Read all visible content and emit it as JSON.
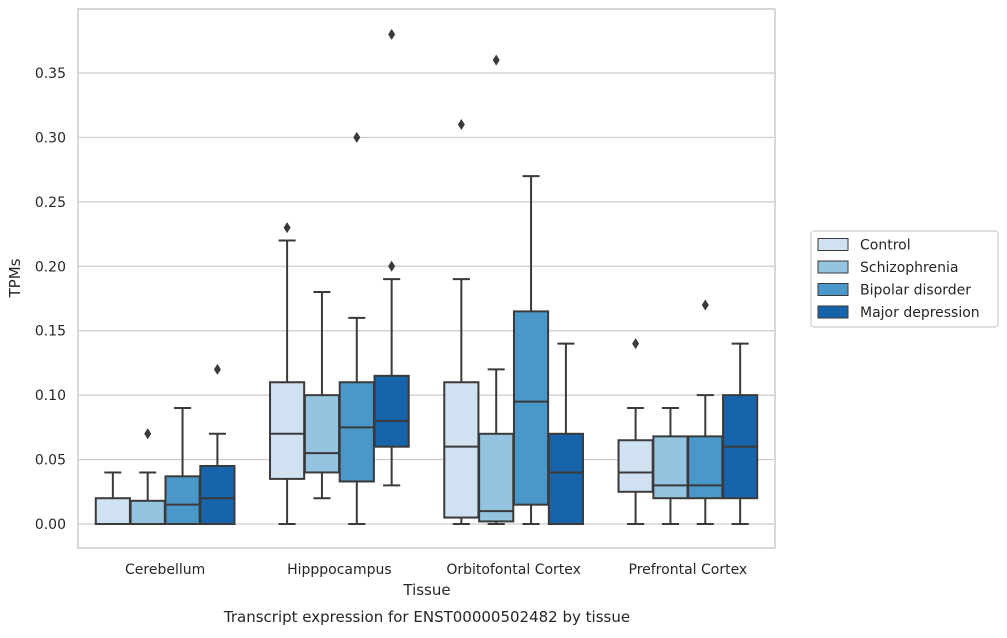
{
  "chart_data": {
    "type": "box",
    "title": "Transcript expression for ENST00000502482 by tissue",
    "xlabel": "Tissue",
    "ylabel": "TPMs",
    "ylim": [
      -0.018,
      0.4
    ],
    "yticks": [
      0.0,
      0.05,
      0.1,
      0.15,
      0.2,
      0.25,
      0.3,
      0.35
    ],
    "ytick_labels": [
      "0.00",
      "0.05",
      "0.10",
      "0.15",
      "0.20",
      "0.25",
      "0.30",
      "0.35"
    ],
    "grid": true,
    "legend_position": "right",
    "categories": [
      "Cerebellum",
      "Hipppocampus",
      "Orbitofontal Cortex",
      "Prefrontal Cortex"
    ],
    "series": [
      {
        "name": "Control",
        "color": "#d0e1f2",
        "boxes": [
          {
            "whislo": 0.0,
            "q1": 0.0,
            "med": 0.0,
            "q3": 0.02,
            "whishi": 0.04,
            "fliers": []
          },
          {
            "whislo": 0.0,
            "q1": 0.035,
            "med": 0.07,
            "q3": 0.11,
            "whishi": 0.22,
            "fliers": [
              0.23
            ]
          },
          {
            "whislo": 0.0,
            "q1": 0.005,
            "med": 0.06,
            "q3": 0.11,
            "whishi": 0.19,
            "fliers": [
              0.31
            ]
          },
          {
            "whislo": 0.0,
            "q1": 0.025,
            "med": 0.04,
            "q3": 0.065,
            "whishi": 0.09,
            "fliers": [
              0.14
            ]
          }
        ]
      },
      {
        "name": "Schizophrenia",
        "color": "#94c4df",
        "boxes": [
          {
            "whislo": 0.0,
            "q1": 0.0,
            "med": 0.0,
            "q3": 0.018,
            "whishi": 0.04,
            "fliers": [
              0.07
            ]
          },
          {
            "whislo": 0.02,
            "q1": 0.04,
            "med": 0.055,
            "q3": 0.1,
            "whishi": 0.18,
            "fliers": []
          },
          {
            "whislo": 0.0,
            "q1": 0.002,
            "med": 0.01,
            "q3": 0.07,
            "whishi": 0.12,
            "fliers": [
              0.36
            ]
          },
          {
            "whislo": 0.0,
            "q1": 0.02,
            "med": 0.03,
            "q3": 0.068,
            "whishi": 0.09,
            "fliers": []
          }
        ]
      },
      {
        "name": "Bipolar disorder",
        "color": "#4a98c9",
        "boxes": [
          {
            "whislo": 0.0,
            "q1": 0.0,
            "med": 0.015,
            "q3": 0.037,
            "whishi": 0.09,
            "fliers": []
          },
          {
            "whislo": 0.0,
            "q1": 0.033,
            "med": 0.075,
            "q3": 0.11,
            "whishi": 0.16,
            "fliers": [
              0.3
            ]
          },
          {
            "whislo": 0.0,
            "q1": 0.015,
            "med": 0.095,
            "q3": 0.165,
            "whishi": 0.27,
            "fliers": []
          },
          {
            "whislo": 0.0,
            "q1": 0.02,
            "med": 0.03,
            "q3": 0.068,
            "whishi": 0.1,
            "fliers": [
              0.17
            ]
          }
        ]
      },
      {
        "name": "Major depression",
        "color": "#1764ab",
        "boxes": [
          {
            "whislo": 0.0,
            "q1": 0.0,
            "med": 0.02,
            "q3": 0.045,
            "whishi": 0.07,
            "fliers": [
              0.12
            ]
          },
          {
            "whislo": 0.03,
            "q1": 0.06,
            "med": 0.08,
            "q3": 0.115,
            "whishi": 0.19,
            "fliers": [
              0.2,
              0.38
            ]
          },
          {
            "whislo": 0.0,
            "q1": 0.0,
            "med": 0.04,
            "q3": 0.07,
            "whishi": 0.14,
            "fliers": []
          },
          {
            "whislo": 0.0,
            "q1": 0.02,
            "med": 0.06,
            "q3": 0.1,
            "whishi": 0.14,
            "fliers": []
          }
        ]
      }
    ]
  }
}
